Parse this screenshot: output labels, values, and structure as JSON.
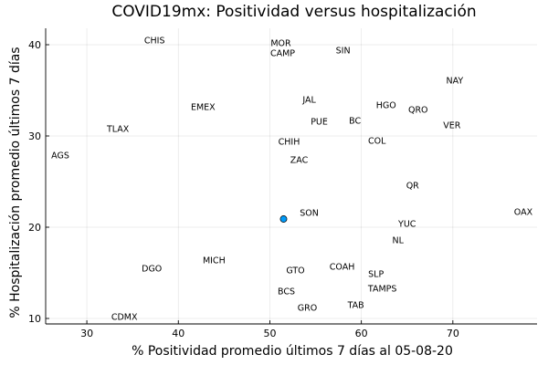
{
  "chart_data": {
    "type": "scatter",
    "title": "COVID19mx: Positividad versus hospitalización",
    "xlabel": "% Positividad promedio últimos 7 días al 05-08-20",
    "ylabel": "% Hospitalización promedio últimos 7 días",
    "xlim": [
      25.5,
      79.2
    ],
    "ylim": [
      9.4,
      41.8
    ],
    "xticks": [
      30,
      40,
      50,
      60,
      70
    ],
    "yticks": [
      10,
      20,
      30,
      40
    ],
    "grid": true,
    "legend": "none",
    "marker_color": "#009af9",
    "point": {
      "x": 51.5,
      "y": 20.9
    },
    "annotations": [
      {
        "text": "CHIS",
        "x": 37.4,
        "y": 40.5
      },
      {
        "text": "MOR",
        "x": 51.2,
        "y": 40.2
      },
      {
        "text": "CAMP",
        "x": 51.4,
        "y": 39.1
      },
      {
        "text": "SIN",
        "x": 58.0,
        "y": 39.4
      },
      {
        "text": "NAY",
        "x": 70.2,
        "y": 36.1
      },
      {
        "text": "JAL",
        "x": 54.3,
        "y": 34.0
      },
      {
        "text": "HGO",
        "x": 62.7,
        "y": 33.4
      },
      {
        "text": "EMEX",
        "x": 42.7,
        "y": 33.2
      },
      {
        "text": "QRO",
        "x": 66.2,
        "y": 32.9
      },
      {
        "text": "PUE",
        "x": 55.4,
        "y": 31.6
      },
      {
        "text": "BC",
        "x": 59.3,
        "y": 31.7
      },
      {
        "text": "VER",
        "x": 69.9,
        "y": 31.2
      },
      {
        "text": "TLAX",
        "x": 33.4,
        "y": 30.8
      },
      {
        "text": "CHIH",
        "x": 52.1,
        "y": 29.4
      },
      {
        "text": "COL",
        "x": 61.7,
        "y": 29.5
      },
      {
        "text": "AGS",
        "x": 27.1,
        "y": 27.9
      },
      {
        "text": "ZAC",
        "x": 53.2,
        "y": 27.4
      },
      {
        "text": "QR",
        "x": 65.6,
        "y": 24.6
      },
      {
        "text": "SON",
        "x": 54.3,
        "y": 21.6
      },
      {
        "text": "OAX",
        "x": 77.7,
        "y": 21.7
      },
      {
        "text": "YUC",
        "x": 65.0,
        "y": 20.4
      },
      {
        "text": "NL",
        "x": 64.0,
        "y": 18.6
      },
      {
        "text": "MICH",
        "x": 43.9,
        "y": 16.4
      },
      {
        "text": "DGO",
        "x": 37.1,
        "y": 15.5
      },
      {
        "text": "COAH",
        "x": 57.9,
        "y": 15.7
      },
      {
        "text": "GTO",
        "x": 52.8,
        "y": 15.3
      },
      {
        "text": "SLP",
        "x": 61.6,
        "y": 14.9
      },
      {
        "text": "TAMPS",
        "x": 62.3,
        "y": 13.3
      },
      {
        "text": "BCS",
        "x": 51.8,
        "y": 13.0
      },
      {
        "text": "GRO",
        "x": 54.1,
        "y": 11.2
      },
      {
        "text": "TAB",
        "x": 59.4,
        "y": 11.5
      },
      {
        "text": "CDMX",
        "x": 34.1,
        "y": 10.2
      }
    ]
  }
}
